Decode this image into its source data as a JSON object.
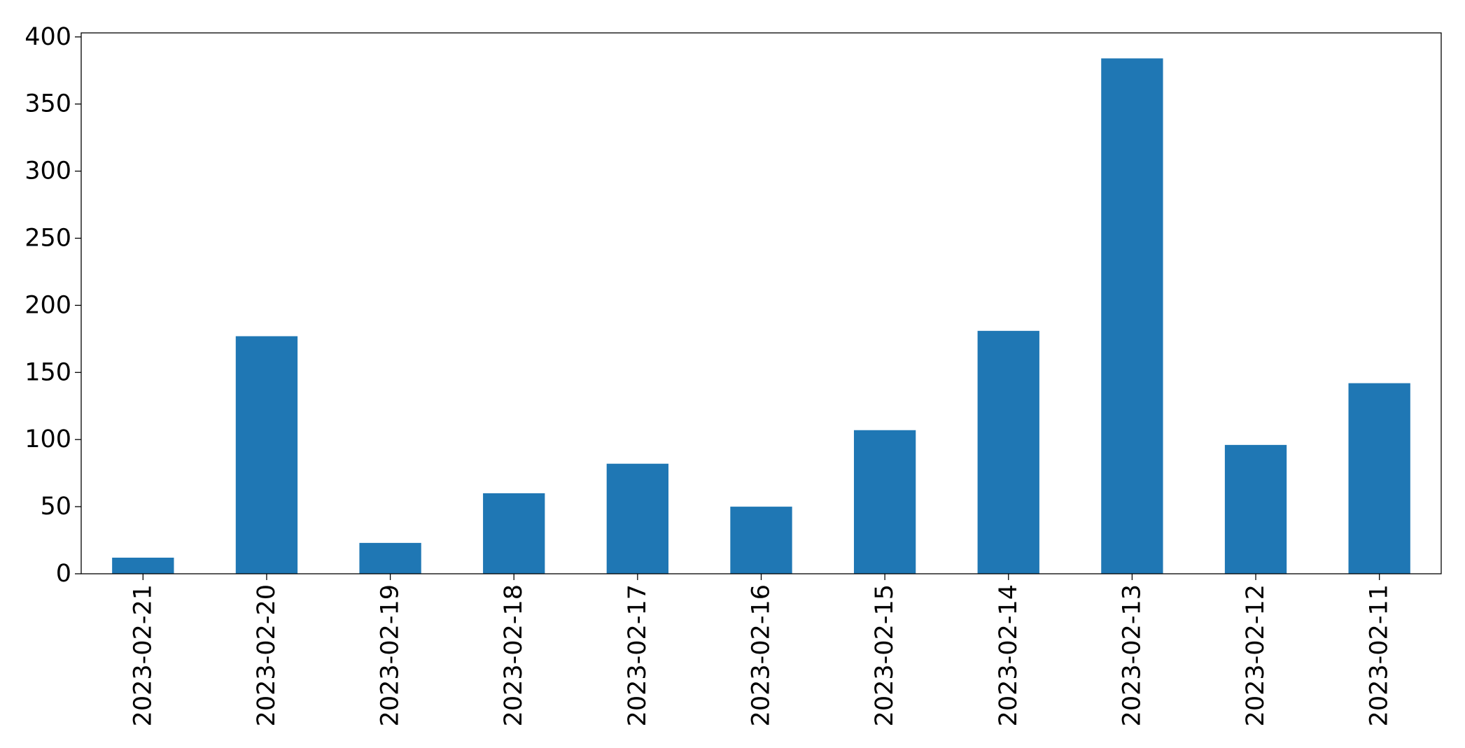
{
  "chart_data": {
    "type": "bar",
    "title": "",
    "xlabel": "",
    "ylabel": "",
    "categories": [
      "2023-02-21",
      "2023-02-20",
      "2023-02-19",
      "2023-02-18",
      "2023-02-17",
      "2023-02-16",
      "2023-02-15",
      "2023-02-14",
      "2023-02-13",
      "2023-02-12",
      "2023-02-11"
    ],
    "values": [
      12,
      177,
      23,
      60,
      82,
      50,
      107,
      181,
      384,
      96,
      142
    ],
    "ylim": [
      0,
      403
    ],
    "yticks": [
      0,
      50,
      100,
      150,
      200,
      250,
      300,
      350,
      400
    ],
    "grid": false,
    "legend": "none",
    "bar_color": "#1f77b4"
  }
}
